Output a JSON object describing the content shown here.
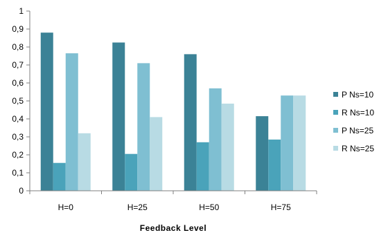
{
  "chart_data": {
    "type": "bar",
    "title": "",
    "xlabel": "Feedback Level",
    "ylabel": "",
    "ylim": [
      0,
      1
    ],
    "yticks": [
      "0",
      "0,1",
      "0,2",
      "0,3",
      "0,4",
      "0,5",
      "0,6",
      "0,7",
      "0,8",
      "0,9",
      "1"
    ],
    "categories": [
      "H=0",
      "H=25",
      "H=50",
      "H=75"
    ],
    "series": [
      {
        "name": "P Ns=10",
        "color": "#3b8296",
        "values": [
          0.88,
          0.825,
          0.76,
          0.415
        ]
      },
      {
        "name": "R Ns=10",
        "color": "#4aa3ba",
        "values": [
          0.155,
          0.205,
          0.27,
          0.285
        ]
      },
      {
        "name": "P Ns=25",
        "color": "#7fbfd2",
        "values": [
          0.765,
          0.71,
          0.57,
          0.53
        ]
      },
      {
        "name": "R Ns=25",
        "color": "#b8dbe4",
        "values": [
          0.32,
          0.41,
          0.485,
          0.53
        ]
      }
    ],
    "grid": false,
    "legend_position": "right"
  }
}
